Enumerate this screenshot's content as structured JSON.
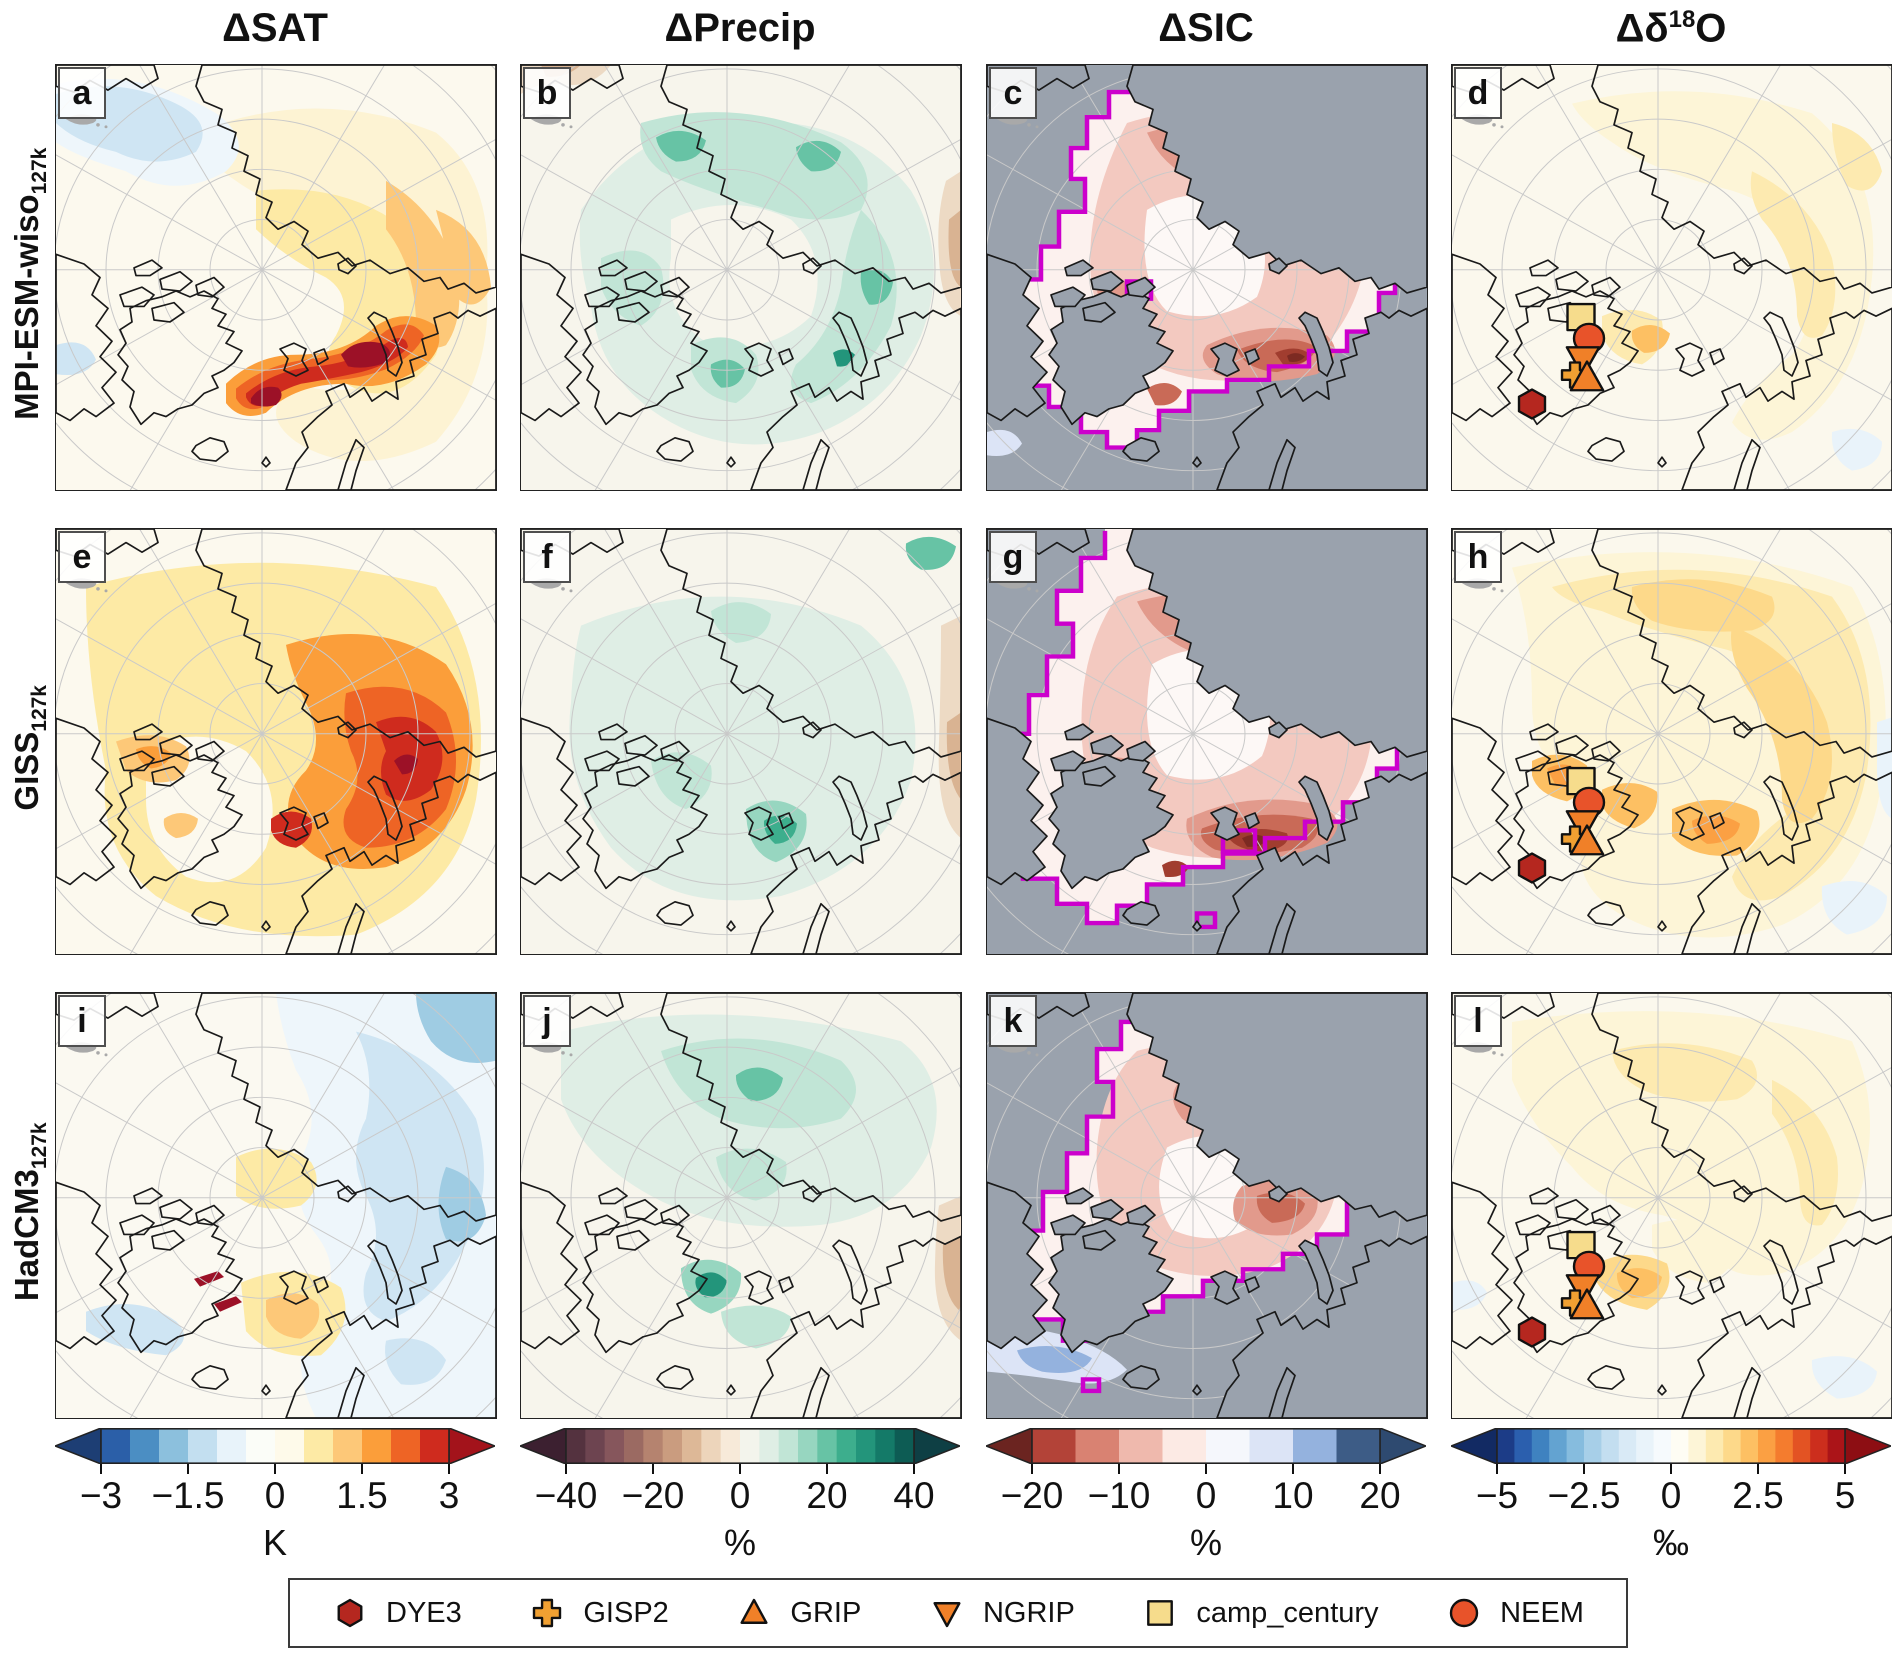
{
  "headers": {
    "col1": "ΔSAT",
    "col2": "ΔPrecip",
    "col3": "ΔSIC",
    "col4_base": "Δδ",
    "col4_sup": "18",
    "col4_tail": "O"
  },
  "rows": [
    {
      "base": "MPI-ESM-wiso",
      "sub": "127k"
    },
    {
      "base": "GISS",
      "sub": "127k"
    },
    {
      "base": "HadCM3",
      "sub": "127k"
    }
  ],
  "panels": {
    "a": {
      "letter": "a"
    },
    "b": {
      "letter": "b"
    },
    "c": {
      "letter": "c"
    },
    "d": {
      "letter": "d"
    },
    "e": {
      "letter": "e"
    },
    "f": {
      "letter": "f"
    },
    "g": {
      "letter": "g"
    },
    "h": {
      "letter": "h"
    },
    "i": {
      "letter": "i"
    },
    "j": {
      "letter": "j"
    },
    "k": {
      "letter": "k"
    },
    "l": {
      "letter": "l"
    }
  },
  "colorbars": {
    "sat": {
      "unit": "K",
      "ticks": [
        "−3",
        "−1.5",
        "0",
        "1.5",
        "3"
      ],
      "arrow_left": "#1d3e74",
      "arrow_right": "#a3131b",
      "colors": [
        "#2b5fa8",
        "#4b8ec3",
        "#8cc0dd",
        "#c3dff0",
        "#e8f3fa",
        "#fbfdf8",
        "#fefaea",
        "#fdeaa5",
        "#fdc878",
        "#fb9e3a",
        "#ee6425",
        "#cf2b1e"
      ]
    },
    "precip": {
      "unit": "%",
      "ticks": [
        "−40",
        "−20",
        "0",
        "20",
        "40"
      ],
      "arrow_left": "#3c2030",
      "arrow_right": "#0e3f44",
      "colors": [
        "#54323f",
        "#6d4450",
        "#86565c",
        "#9b6a62",
        "#b5836f",
        "#ca9c7f",
        "#ddb897",
        "#edd5bb",
        "#f7ead9",
        "#f3f4ec",
        "#dfeee5",
        "#c1e5d6",
        "#97d6c0",
        "#67c3a5",
        "#3dae8d",
        "#23957b",
        "#147a68",
        "#0d5c54"
      ]
    },
    "sic": {
      "unit": "%",
      "ticks": [
        "−20",
        "−10",
        "0",
        "10",
        "20"
      ],
      "arrow_left": "#6b2420",
      "arrow_right": "#2e4a70",
      "colors": [
        "#b34338",
        "#d98272",
        "#efb9ad",
        "#fceae4",
        "#f5f7fc",
        "#dce4f6",
        "#94b2de",
        "#3d5c86"
      ]
    },
    "d18o": {
      "unit": "‰",
      "ticks": [
        "−5",
        "−2.5",
        "0",
        "2.5",
        "5"
      ],
      "arrow_left": "#122a63",
      "arrow_right": "#8d0e13",
      "colors": [
        "#1c3c87",
        "#2b5fae",
        "#3f82c0",
        "#63a3d1",
        "#86bcde",
        "#a7cfe8",
        "#c3def0",
        "#d9eaf6",
        "#e9f3fa",
        "#f6fafd",
        "#fefdf4",
        "#fdf5d7",
        "#fdeab0",
        "#fdd98a",
        "#fdc063",
        "#fba043",
        "#f47c2e",
        "#e35323",
        "#cc2e1d",
        "#ab1418"
      ]
    }
  },
  "legend": {
    "items": [
      {
        "label": "DYE3",
        "shape": "hexagon",
        "color": "#b5271f"
      },
      {
        "label": "GISP2",
        "shape": "plus",
        "color": "#f0a032"
      },
      {
        "label": "GRIP",
        "shape": "triangle-up",
        "color": "#f08028"
      },
      {
        "label": "NGRIP",
        "shape": "triangle-down",
        "color": "#f08028"
      },
      {
        "label": "camp_century",
        "shape": "square",
        "color": "#f6dc8c"
      },
      {
        "label": "NEEM",
        "shape": "circle",
        "color": "#e8532a"
      }
    ]
  },
  "colors": {
    "magenta_ice_edge": "#cc00cc",
    "land_gray": "#9aa2ad",
    "panel_background": "#fbf8ee",
    "graticule": "#c9c9c9",
    "coastline": "#1a1a1a"
  },
  "chart_data": {
    "type": "heatmap",
    "figure_kind": "3x4 grid of north-polar stereographic anomaly maps (127k climate simulations)",
    "rows_models": [
      "MPI-ESM-wiso 127k",
      "GISS 127k",
      "HadCM3 127k"
    ],
    "columns_variables": [
      {
        "name": "ΔSAT",
        "unit": "K",
        "colorbar_range": [
          -3,
          3
        ],
        "contour_interval": 0.5,
        "tick_values": [
          -3,
          -1.5,
          0,
          1.5,
          3
        ]
      },
      {
        "name": "ΔPrecip",
        "unit": "%",
        "colorbar_range": [
          -45,
          45
        ],
        "contour_interval": 5,
        "tick_values": [
          -40,
          -20,
          0,
          20,
          40
        ]
      },
      {
        "name": "ΔSIC",
        "unit": "%",
        "colorbar_range": [
          -20,
          20
        ],
        "contour_interval": 5,
        "tick_values": [
          -20,
          -10,
          0,
          10,
          20
        ],
        "overlay": "thick magenta sea-ice edge contour; land and ice-free ocean shown gray"
      },
      {
        "name": "Δδ18O",
        "unit": "‰",
        "colorbar_range": [
          -5,
          5
        ],
        "contour_interval": 0.5,
        "tick_values": [
          -5,
          -2.5,
          0,
          2.5,
          5
        ],
        "overlay": "Greenland ice-core site markers"
      }
    ],
    "panel_letters": [
      [
        "a",
        "b",
        "c",
        "d"
      ],
      [
        "e",
        "f",
        "g",
        "h"
      ],
      [
        "i",
        "j",
        "k",
        "l"
      ]
    ],
    "panel_summaries": {
      "a": "Strong warming band (>3 K) along east Greenland coast toward Svalbard/Barents Sea; weak cooling in Pacific sector; moderate warming over Siberian side.",
      "b": "Precipitation increase (10–40%) in a ring along Arctic coasts; slight decrease along the eastern (Eurasian/Atlantic) edge.",
      "c": "Sea-ice concentration loss up to −20% around the pack margin, strongest north of the Barents/Kara seas; magenta contour marks the ice edge.",
      "d": "Small δ18O enrichment (0–1.5‰) over the Arctic; local maximum just east of the Greenland ice-core sites.",
      "e": "Widespread warming; strongest (2–3 K) over the Barents and Kara seas and over the Canadian Archipelago; near-zero over Greenland.",
      "f": "Weak precipitation increase over the central Arctic with a maximum south of Svalbard; decrease along the eastern edge.",
      "g": "Large sea-ice loss around the whole pack margin, strongest (−20%) near Svalbard; complex magenta ice-edge contour.",
      "h": "δ18O increase up to ~2.5‰ over the Barents sector and west of the Greenland sites; slight depletion bottom-right.",
      "i": "Cooling (1–2 K) over the Siberian/eastern Arctic; weak warming near the pole and south of Svalbard; tiny strong-warming slivers near NE Greenland.",
      "j": "Precipitation increase over the Chukchi/East Siberian sector and the archipelago, with a dark maximum near NW Greenland; decrease along eastern edge.",
      "k": "Moderate central-Arctic sea-ice decrease; slight sea-ice increase (blue) southwest of Greenland; magenta ice-edge contour.",
      "l": "Weak δ18O enrichment over the central Arctic; maximum just southeast of the Greenland sites."
    },
    "sites": [
      "DYE3",
      "GISP2",
      "GRIP",
      "NGRIP",
      "camp_century",
      "NEEM"
    ]
  }
}
